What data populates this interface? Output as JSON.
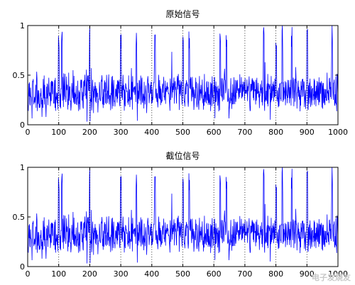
{
  "watermark": "电子发烧友",
  "chart_data": [
    {
      "type": "line",
      "title": "原始信号",
      "xlim": [
        0,
        1000
      ],
      "ylim": [
        0,
        1
      ],
      "xticks": [
        0,
        100,
        200,
        300,
        400,
        500,
        600,
        700,
        800,
        900,
        1000
      ],
      "yticks": [
        0,
        0.5,
        1
      ],
      "vgrid": [
        100,
        200,
        300,
        400,
        500,
        600,
        700,
        800,
        900
      ],
      "grid": "vertical dotted",
      "color": "#0000ff",
      "noise": {
        "n": 1000,
        "base": 0.33,
        "amplitude": 0.18,
        "seed": 7,
        "spike_positions": [
          100,
          110,
          200,
          300,
          350,
          410,
          500,
          520,
          620,
          640,
          760,
          800,
          820,
          850,
          900,
          980
        ]
      }
    },
    {
      "type": "line",
      "title": "截位信号",
      "xlim": [
        0,
        1000
      ],
      "ylim": [
        0,
        1
      ],
      "xticks": [
        0,
        100,
        200,
        300,
        400,
        500,
        600,
        700,
        800,
        900,
        1000
      ],
      "yticks": [
        0,
        0.5,
        1
      ],
      "vgrid": [
        100,
        200,
        300,
        400,
        500,
        600,
        700,
        800,
        900
      ],
      "grid": "vertical dotted",
      "color": "#0000ff",
      "noise": {
        "n": 1000,
        "base": 0.33,
        "amplitude": 0.18,
        "seed": 7,
        "spike_positions": [
          100,
          110,
          200,
          300,
          350,
          410,
          500,
          520,
          620,
          640,
          760,
          800,
          820,
          850,
          900,
          980
        ]
      }
    }
  ]
}
